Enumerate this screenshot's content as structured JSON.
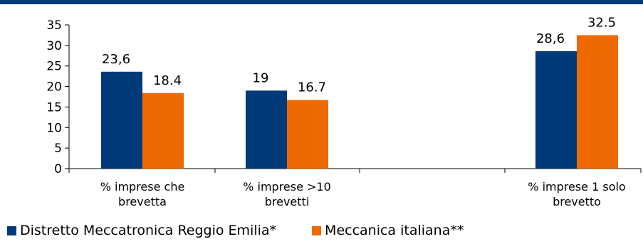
{
  "chart_data": {
    "type": "bar",
    "title": "",
    "xlabel": "",
    "ylabel": "",
    "ylim": [
      0,
      35
    ],
    "yticks": [
      "0",
      "5",
      "10",
      "15",
      "20",
      "25",
      "30",
      "35"
    ],
    "grid": false,
    "legend_position": "bottom",
    "categories": [
      {
        "lines": [
          "% imprese che",
          "brevetta"
        ]
      },
      {
        "lines": [
          "% imprese >10",
          "brevetti"
        ]
      },
      {
        "lines": [
          "% imprese 1 solo",
          "brevetto"
        ]
      }
    ],
    "series": [
      {
        "name": "Distretto Meccatronica Reggio Emilia*",
        "color": "#003A78",
        "values": [
          23.6,
          19,
          28.6
        ],
        "labels": [
          "23,6",
          "19",
          "28,6"
        ]
      },
      {
        "name": "Meccanica italiana**",
        "color": "#EE6A00",
        "values": [
          18.4,
          16.7,
          32.5
        ],
        "labels": [
          "18.4",
          "16.7",
          "32.5"
        ]
      }
    ],
    "top_rule_color": "#003A78"
  }
}
